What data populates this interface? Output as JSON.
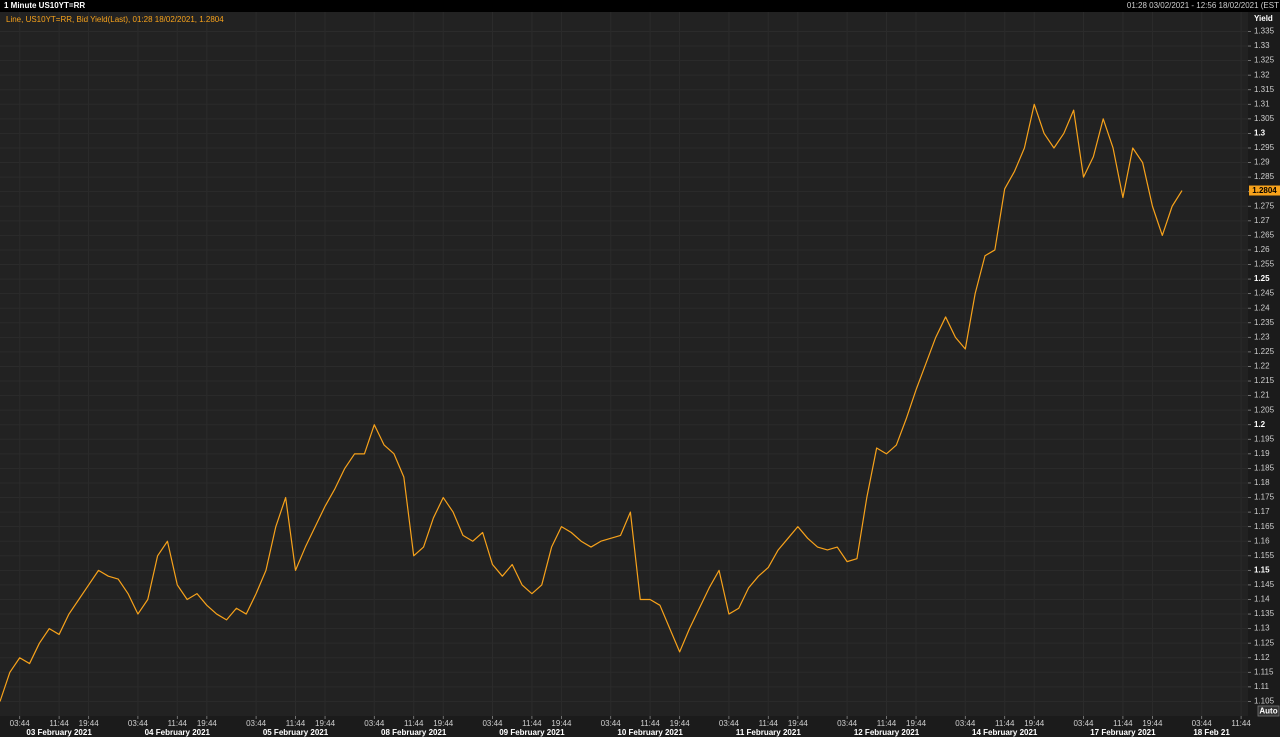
{
  "chart_data": {
    "type": "line",
    "title": "1 Minute US10YT=RR",
    "subtitle": "01:28 03/02/2021 - 12:56 18/02/2021 (EST",
    "y_label": "Yield",
    "autoscale_button": "Auto",
    "categories": [
      null,
      null,
      "03:44",
      null,
      null,
      null,
      "11:44",
      null,
      null,
      "19:44",
      null,
      null,
      null,
      null,
      "03:44",
      null,
      null,
      null,
      "11:44",
      null,
      null,
      "19:44",
      null,
      null,
      null,
      null,
      "03:44",
      null,
      null,
      null,
      "11:44",
      null,
      null,
      "19:44",
      null,
      null,
      null,
      null,
      "03:44",
      null,
      null,
      null,
      "11:44",
      null,
      null,
      "19:44",
      null,
      null,
      null,
      null,
      "03:44",
      null,
      null,
      null,
      "11:44",
      null,
      null,
      "19:44",
      null,
      null,
      null,
      null,
      "03:44",
      null,
      null,
      null,
      "11:44",
      null,
      null,
      "19:44",
      null,
      null,
      null,
      null,
      "03:44",
      null,
      null,
      null,
      "11:44",
      null,
      null,
      "19:44",
      null,
      null,
      null,
      null,
      "03:44",
      null,
      null,
      null,
      "11:44",
      null,
      null,
      "19:44",
      null,
      null,
      null,
      null,
      "03:44",
      null,
      null,
      null,
      "11:44",
      null,
      null,
      "19:44",
      null,
      null,
      null,
      null,
      "03:44",
      null,
      null,
      null,
      "11:44",
      null,
      null,
      "19:44",
      null,
      null,
      null,
      null,
      "03:44",
      null,
      null,
      null,
      "11:44"
    ],
    "date_categories": [
      null,
      null,
      null,
      null,
      null,
      null,
      "03 February 2021",
      null,
      null,
      null,
      null,
      null,
      null,
      null,
      null,
      null,
      null,
      null,
      "04 February 2021",
      null,
      null,
      null,
      null,
      null,
      null,
      null,
      null,
      null,
      null,
      null,
      "05 February 2021",
      null,
      null,
      null,
      null,
      null,
      null,
      null,
      null,
      null,
      null,
      null,
      "08 February 2021",
      null,
      null,
      null,
      null,
      null,
      null,
      null,
      null,
      null,
      null,
      null,
      "09 February 2021",
      null,
      null,
      null,
      null,
      null,
      null,
      null,
      null,
      null,
      null,
      null,
      "10 February 2021",
      null,
      null,
      null,
      null,
      null,
      null,
      null,
      null,
      null,
      null,
      null,
      "11 February 2021",
      null,
      null,
      null,
      null,
      null,
      null,
      null,
      null,
      null,
      null,
      null,
      "12 February 2021",
      null,
      null,
      null,
      null,
      null,
      null,
      null,
      null,
      null,
      null,
      null,
      "14 February 2021",
      null,
      null,
      null,
      null,
      null,
      null,
      null,
      null,
      null,
      null,
      null,
      "17 February 2021",
      null,
      null,
      null,
      null,
      null,
      null,
      null,
      null,
      "18 Feb 21",
      null,
      null,
      null
    ],
    "series": [
      {
        "name": "Line, US10YT=RR, Bid Yield(Last), 01:28 18/02/2021, 1.2804",
        "color": "#f7a21b",
        "values": [
          1.105,
          1.115,
          1.12,
          1.118,
          1.125,
          1.13,
          1.128,
          1.135,
          1.14,
          1.145,
          1.15,
          1.148,
          1.147,
          1.142,
          1.135,
          1.14,
          1.155,
          1.16,
          1.145,
          1.14,
          1.142,
          1.138,
          1.135,
          1.133,
          1.137,
          1.135,
          1.142,
          1.15,
          1.165,
          1.175,
          1.15,
          1.158,
          1.165,
          1.172,
          1.178,
          1.185,
          1.19,
          1.19,
          1.2,
          1.193,
          1.19,
          1.182,
          1.155,
          1.158,
          1.168,
          1.175,
          1.17,
          1.162,
          1.16,
          1.163,
          1.152,
          1.148,
          1.152,
          1.145,
          1.142,
          1.145,
          1.158,
          1.165,
          1.163,
          1.16,
          1.158,
          1.16,
          1.161,
          1.162,
          1.17,
          1.14,
          1.14,
          1.138,
          1.13,
          1.122,
          1.13,
          1.137,
          1.144,
          1.15,
          1.135,
          1.137,
          1.144,
          1.148,
          1.151,
          1.157,
          1.161,
          1.165,
          1.161,
          1.158,
          1.157,
          1.158,
          1.153,
          1.154,
          1.175,
          1.192,
          1.19,
          1.193,
          1.202,
          1.212,
          1.221,
          1.23,
          1.237,
          1.23,
          1.226,
          1.245,
          1.258,
          1.26,
          1.281,
          1.287,
          1.295,
          1.31,
          1.3,
          1.295,
          1.3,
          1.308,
          1.285,
          1.292,
          1.305,
          1.295,
          1.278,
          1.295,
          1.29,
          1.275,
          1.265,
          1.275,
          1.2804,
          null,
          null,
          null,
          null,
          null,
          null
        ]
      }
    ],
    "ylim": [
      1.1,
      1.341
    ],
    "yticks": [
      1.105,
      1.11,
      1.115,
      1.12,
      1.125,
      1.13,
      1.135,
      1.14,
      1.145,
      1.15,
      1.155,
      1.16,
      1.165,
      1.17,
      1.175,
      1.18,
      1.185,
      1.19,
      1.195,
      1.2,
      1.205,
      1.21,
      1.215,
      1.22,
      1.225,
      1.23,
      1.235,
      1.24,
      1.245,
      1.25,
      1.255,
      1.26,
      1.265,
      1.27,
      1.275,
      1.28,
      1.285,
      1.29,
      1.295,
      1.3,
      1.305,
      1.31,
      1.315,
      1.32,
      1.325,
      1.33,
      1.335
    ],
    "grid": true,
    "last_value_marker": true
  }
}
